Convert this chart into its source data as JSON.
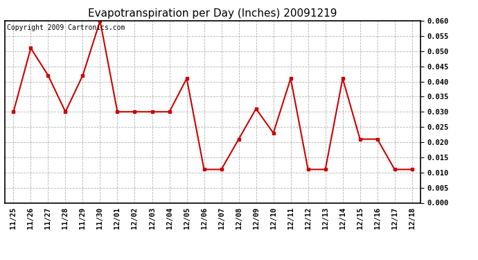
{
  "title": "Evapotranspiration per Day (Inches) 20091219",
  "copyright_text": "Copyright 2009 Cartronics.com",
  "dates": [
    "11/25",
    "11/26",
    "11/27",
    "11/28",
    "11/29",
    "11/30",
    "12/01",
    "12/02",
    "12/03",
    "12/04",
    "12/05",
    "12/06",
    "12/07",
    "12/08",
    "12/09",
    "12/10",
    "12/11",
    "12/12",
    "12/13",
    "12/14",
    "12/15",
    "12/16",
    "12/17",
    "12/18"
  ],
  "values": [
    0.03,
    0.051,
    0.042,
    0.03,
    0.042,
    0.06,
    0.03,
    0.03,
    0.03,
    0.03,
    0.041,
    0.011,
    0.011,
    0.021,
    0.031,
    0.023,
    0.041,
    0.011,
    0.011,
    0.041,
    0.021,
    0.021,
    0.011,
    0.011
  ],
  "line_color": "#cc0000",
  "marker": "s",
  "marker_size": 3,
  "ylim_max": 0.06,
  "ytick_step": 0.005,
  "background_color": "#ffffff",
  "grid_color": "#aaaaaa",
  "title_fontsize": 11,
  "tick_fontsize": 7.5,
  "copyright_fontsize": 7,
  "border_color": "#000000"
}
